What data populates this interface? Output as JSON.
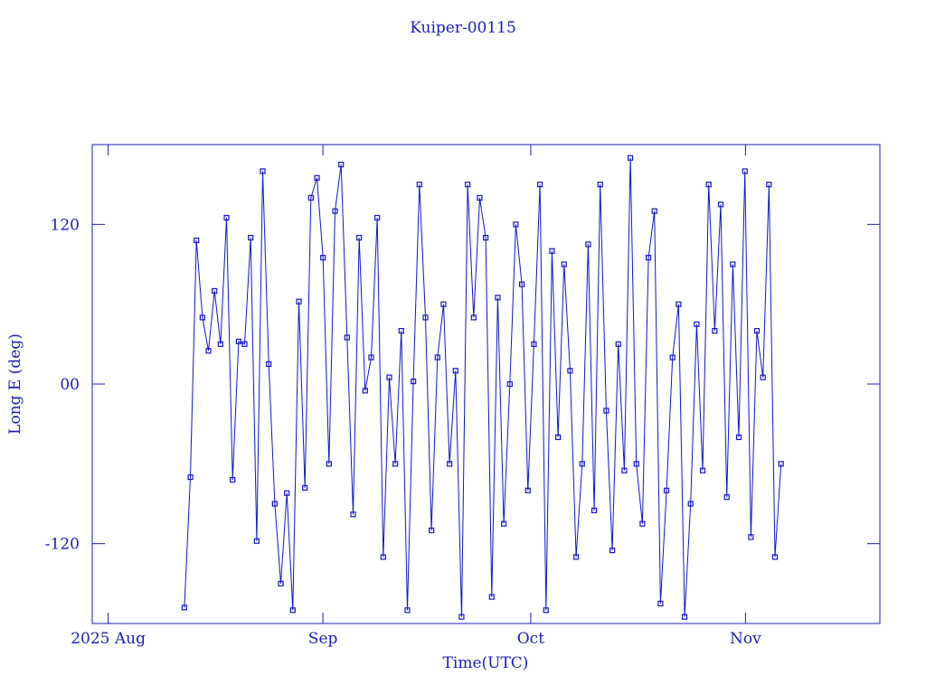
{
  "chart_data": {
    "type": "line",
    "title": "Kuiper-00115",
    "xlabel": "Time(UTC)",
    "ylabel": "Long E (deg)",
    "color": "#1414c8",
    "xlim": [
      -2.3,
      111.4
    ],
    "xticks": [
      {
        "value": 0,
        "label": "2025 Aug"
      },
      {
        "value": 31,
        "label": "Sep"
      },
      {
        "value": 61,
        "label": "Oct"
      },
      {
        "value": 92,
        "label": "Nov"
      }
    ],
    "ylim": [
      -180,
      180
    ],
    "yticks": [
      -120,
      {
        "value": 0,
        "label": "00"
      },
      120
    ],
    "x": [
      11,
      11.87,
      12.74,
      13.61,
      14.48,
      15.35,
      16.22,
      17.09,
      17.96,
      18.83,
      19.7,
      20.57,
      21.44,
      22.31,
      23.18,
      24.05,
      24.92,
      25.79,
      26.66,
      27.53,
      28.4,
      29.27,
      30.14,
      31.01,
      31.88,
      32.75,
      33.62,
      34.49,
      35.36,
      36.23,
      37.1,
      37.97,
      38.84,
      39.71,
      40.58,
      41.45,
      42.32,
      43.19,
      44.06,
      44.93,
      45.8,
      46.67,
      47.54,
      48.41,
      49.28,
      50.15,
      51.02,
      51.89,
      52.76,
      53.63,
      54.5,
      55.37,
      56.24,
      57.11,
      57.98,
      58.85,
      59.72,
      60.59,
      61.46,
      62.33,
      63.2,
      64.07,
      64.94,
      65.81,
      66.68,
      67.55,
      68.42,
      69.29,
      70.16,
      71.03,
      71.9,
      72.77,
      73.64,
      74.51,
      75.38,
      76.25,
      77.12,
      77.99,
      78.86,
      79.73,
      80.6,
      81.47,
      82.34,
      83.21,
      84.08,
      84.95,
      85.82,
      86.69,
      87.56,
      88.43,
      89.3,
      90.17,
      91.04,
      91.91,
      92.78,
      93.65,
      94.52,
      95.39,
      96.26,
      97.13
    ],
    "values": [
      -168,
      -70,
      108,
      50,
      25,
      70,
      30,
      125,
      -72,
      32,
      30,
      110,
      -118,
      160,
      15,
      -90,
      -150,
      -82,
      -170,
      62,
      -78,
      140,
      155,
      95,
      -60,
      130,
      165,
      35,
      -98,
      110,
      -5,
      20,
      125,
      -130,
      5,
      -60,
      40,
      -170,
      2,
      150,
      50,
      -110,
      20,
      60,
      -60,
      10,
      -175,
      150,
      50,
      140,
      110,
      -160,
      65,
      -105,
      0,
      120,
      75,
      -80,
      30,
      150,
      -170,
      100,
      -40,
      90,
      10,
      -130,
      -60,
      105,
      -95,
      150,
      -20,
      -125,
      30,
      -65,
      170,
      -60,
      -105,
      95,
      130,
      -165,
      -80,
      20,
      60,
      -175,
      -90,
      45,
      -65,
      150,
      40,
      135,
      -85,
      90,
      -40,
      160,
      -115,
      40,
      5,
      150,
      -130,
      -60
    ]
  }
}
